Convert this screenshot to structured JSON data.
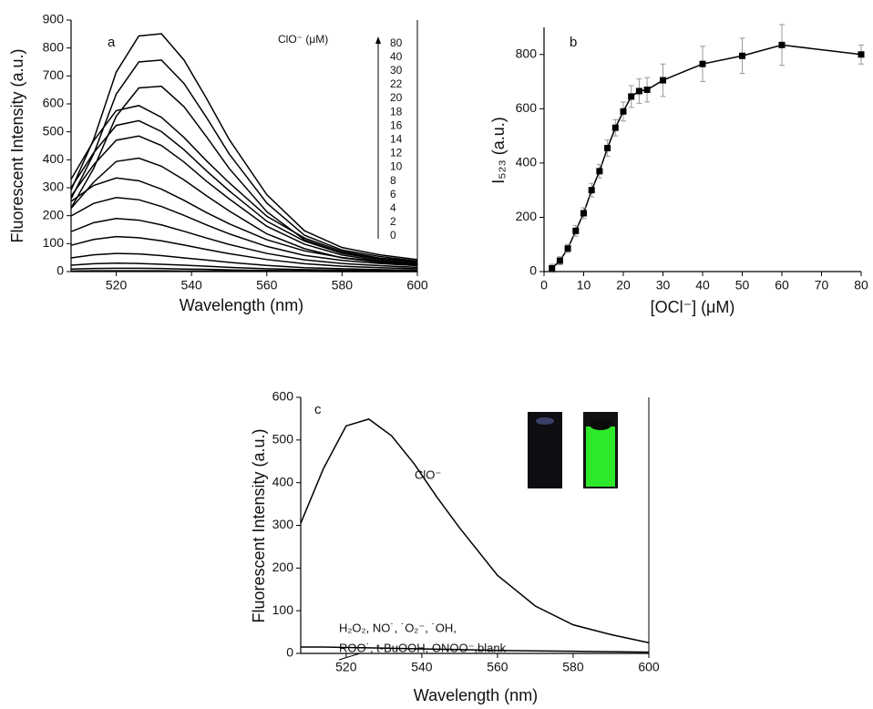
{
  "chart_data": [
    {
      "type": "line",
      "panel": "a",
      "x_label": "Wavelength (nm)",
      "y_label": "Fluorescent Intensity (a.u.)",
      "annotation": "ClO⁻ (μM)",
      "color": "#000000",
      "x": [
        508,
        514,
        520,
        526,
        532,
        538,
        544,
        550,
        560,
        570,
        580,
        590,
        600
      ],
      "xlim": [
        508,
        600
      ],
      "xticks": [
        520,
        540,
        560,
        580,
        600
      ],
      "ylim": [
        0,
        900
      ],
      "yticks": [
        0,
        100,
        200,
        300,
        400,
        500,
        600,
        700,
        800,
        900
      ],
      "series": [
        {
          "name": "0",
          "values": [
            2,
            3,
            3,
            3,
            3,
            2,
            2,
            2,
            1,
            1,
            0,
            0,
            0
          ]
        },
        {
          "name": "2",
          "values": [
            9,
            11,
            12,
            12,
            11,
            9,
            8,
            6,
            4,
            3,
            2,
            1,
            1
          ]
        },
        {
          "name": "4",
          "values": [
            23,
            28,
            30,
            29,
            26,
            23,
            19,
            15,
            10,
            7,
            5,
            3,
            2
          ]
        },
        {
          "name": "6",
          "values": [
            49,
            60,
            65,
            63,
            57,
            49,
            41,
            33,
            22,
            14,
            10,
            7,
            5
          ]
        },
        {
          "name": "8",
          "values": [
            94,
            115,
            125,
            121,
            110,
            95,
            79,
            64,
            43,
            28,
            19,
            14,
            10
          ]
        },
        {
          "name": "10",
          "values": [
            143,
            175,
            190,
            184,
            167,
            144,
            120,
            97,
            65,
            42,
            29,
            21,
            15
          ]
        },
        {
          "name": "12",
          "values": [
            199,
            244,
            265,
            257,
            233,
            201,
            167,
            135,
            90,
            58,
            40,
            29,
            21
          ]
        },
        {
          "name": "14",
          "values": [
            251,
            308,
            335,
            325,
            295,
            255,
            211,
            171,
            114,
            74,
            50,
            37,
            27
          ]
        },
        {
          "name": "16",
          "values": [
            226,
            320,
            394,
            406,
            377,
            328,
            271,
            217,
            135,
            82,
            49,
            33,
            25
          ]
        },
        {
          "name": "18",
          "values": [
            270,
            382,
            470,
            485,
            451,
            392,
            323,
            260,
            162,
            98,
            59,
            39,
            29
          ]
        },
        {
          "name": "20",
          "values": [
            300,
            425,
            523,
            540,
            501,
            436,
            360,
            289,
            180,
            109,
            65,
            44,
            33
          ]
        },
        {
          "name": "22",
          "values": [
            330,
            468,
            576,
            594,
            552,
            480,
            396,
            318,
            198,
            120,
            72,
            48,
            36
          ]
        },
        {
          "name": "30",
          "values": [
            228,
            369,
            556,
            657,
            663,
            590,
            482,
            369,
            214,
            114,
            67,
            47,
            34
          ]
        },
        {
          "name": "40",
          "values": [
            260,
            421,
            635,
            750,
            757,
            673,
            551,
            421,
            245,
            130,
            77,
            54,
            38
          ]
        },
        {
          "name": "80",
          "values": [
            292,
            473,
            714,
            843,
            851,
            757,
            619,
            473,
            275,
            146,
            86,
            60,
            43
          ]
        }
      ]
    },
    {
      "type": "line",
      "panel": "b",
      "x_label": "[OCl⁻] (μM)",
      "y_label": "I₅₂₃ (a.u.)",
      "color": "#000000",
      "marker": "square",
      "x": [
        2,
        4,
        6,
        8,
        10,
        12,
        14,
        16,
        18,
        20,
        22,
        24,
        26,
        30,
        40,
        50,
        60,
        80
      ],
      "xlim": [
        0,
        80
      ],
      "xticks": [
        0,
        10,
        20,
        30,
        40,
        50,
        60,
        70,
        80
      ],
      "ylim": [
        0,
        900
      ],
      "yticks": [
        0,
        200,
        400,
        600,
        800
      ],
      "series": [
        {
          "values": [
            12,
            40,
            85,
            150,
            215,
            300,
            370,
            455,
            530,
            590,
            645,
            665,
            670,
            705,
            765,
            795,
            835,
            800
          ],
          "errors": [
            15,
            15,
            15,
            20,
            20,
            25,
            25,
            30,
            30,
            35,
            40,
            45,
            45,
            60,
            65,
            65,
            75,
            35
          ]
        }
      ]
    },
    {
      "type": "line",
      "panel": "c",
      "x_label": "Wavelength (nm)",
      "y_label": "Fluorescent Intensity (a.u.)",
      "color": "#000000",
      "annotations": [
        "H₂O₂, NO˙, ˙O₂⁻, ˙OH,",
        "ROO˙, t-BuOOH, ONOO⁻,blank"
      ],
      "x": [
        508,
        514,
        520,
        526,
        532,
        538,
        544,
        550,
        560,
        570,
        580,
        590,
        600
      ],
      "xlim": [
        508,
        600
      ],
      "xticks": [
        520,
        540,
        560,
        580,
        600
      ],
      "ylim": [
        0,
        600
      ],
      "yticks": [
        0,
        100,
        200,
        300,
        400,
        500,
        600
      ],
      "series": [
        {
          "name": "ClO⁻",
          "values": [
            305,
            433,
            533,
            549,
            510,
            444,
            366,
            294,
            183,
            111,
            67,
            44,
            25
          ]
        },
        {
          "values": [
            15,
            15,
            14,
            13,
            12,
            11,
            10,
            9,
            7,
            6,
            5,
            4,
            3
          ]
        }
      ]
    }
  ]
}
